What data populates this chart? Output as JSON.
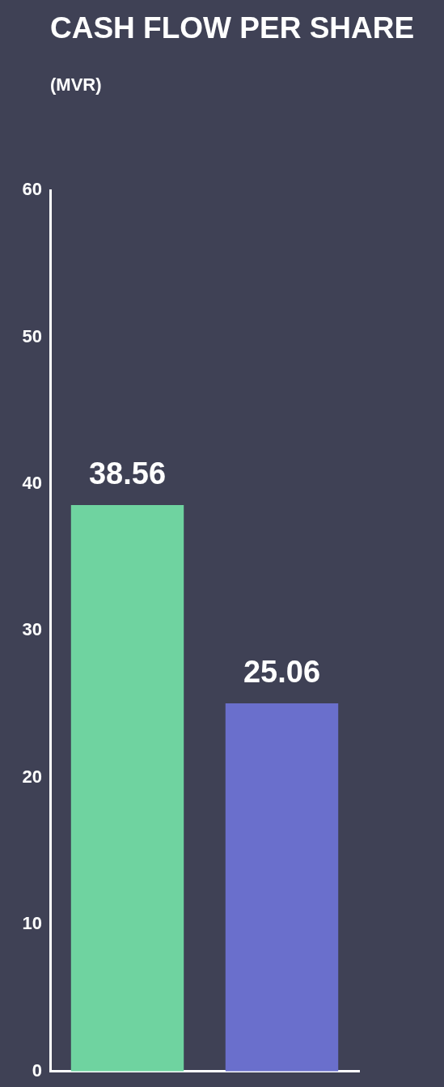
{
  "chart_data": {
    "type": "bar",
    "title": "CASH FLOW PER SHARE",
    "subtitle": "(MVR)",
    "categories": [
      null,
      null
    ],
    "values": [
      38.56,
      25.06
    ],
    "colors": [
      "#6fd3a0",
      "#6a6fcc"
    ],
    "ylim": [
      0,
      60
    ],
    "yticks": [
      0,
      10,
      20,
      30,
      40,
      50,
      60
    ],
    "data_labels": true
  }
}
